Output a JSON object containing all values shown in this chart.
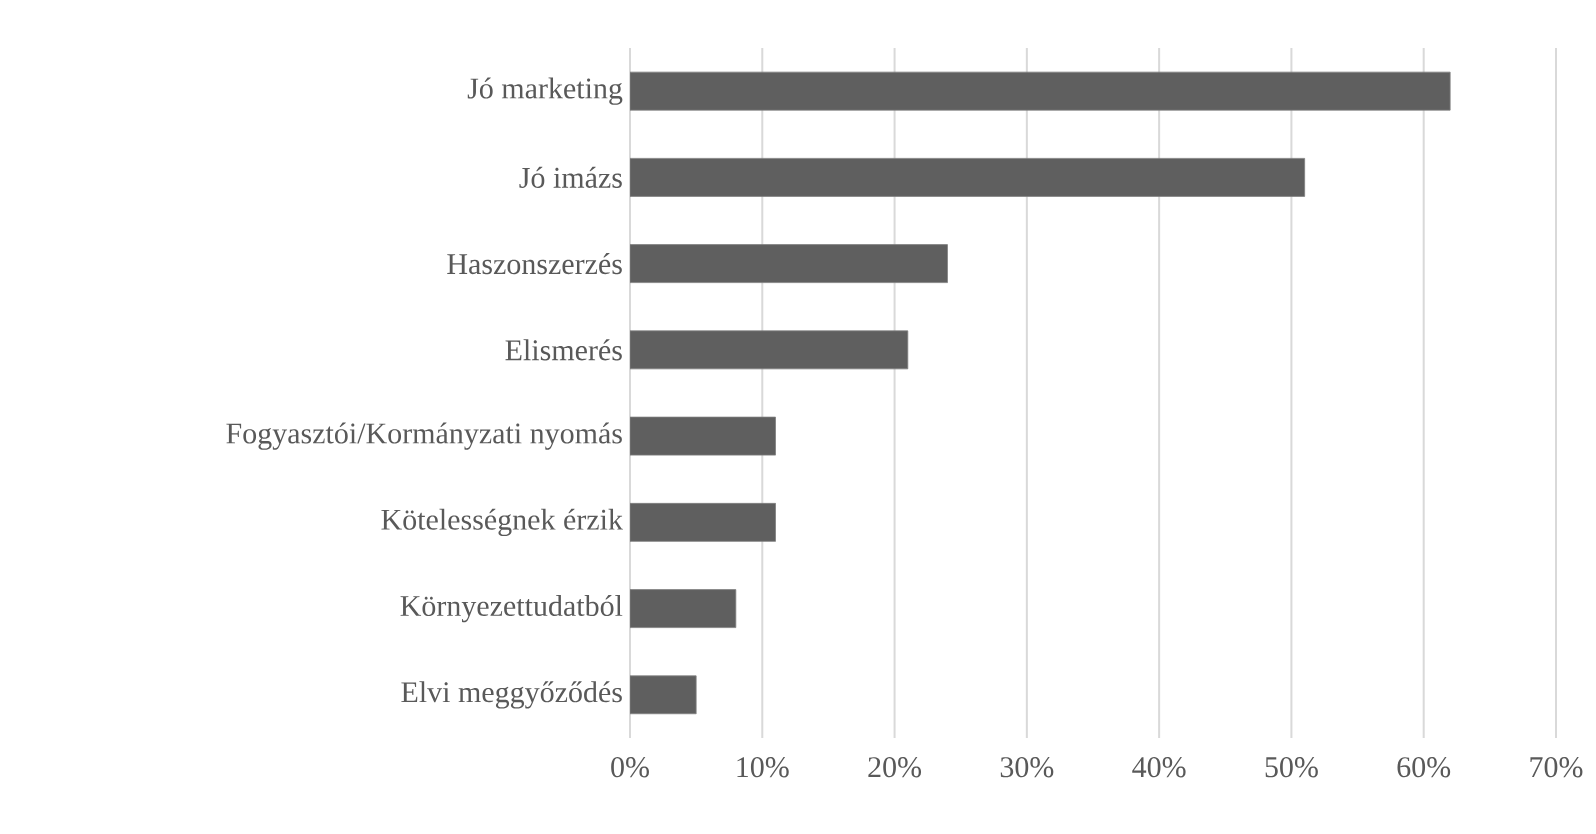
{
  "chart_data": {
    "type": "bar",
    "orientation": "horizontal",
    "categories": [
      "Jó marketing",
      "Jó imázs",
      "Haszonszerzés",
      "Elismerés",
      "Fogyasztói/Kormányzati nyomás",
      "Kötelességnek érzik",
      "Környezettudatból",
      "Elvi meggyőződés"
    ],
    "values": [
      62,
      51,
      24,
      21,
      11,
      11,
      8,
      5
    ],
    "color": "#5f5f5f",
    "xlim": [
      0,
      70
    ],
    "xticks": [
      {
        "value": 0,
        "label": "0%"
      },
      {
        "value": 10,
        "label": "10%"
      },
      {
        "value": 20,
        "label": "20%"
      },
      {
        "value": 30,
        "label": "30%"
      },
      {
        "value": 40,
        "label": "40%"
      },
      {
        "value": 50,
        "label": "50%"
      },
      {
        "value": 60,
        "label": "60%"
      },
      {
        "value": 70,
        "label": "70%"
      }
    ],
    "grid": "x"
  }
}
